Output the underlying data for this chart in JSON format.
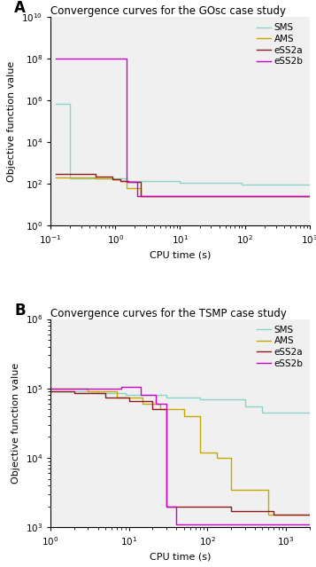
{
  "panel_A": {
    "title": "Convergence curves for the GOsc case study",
    "xlabel": "CPU time (s)",
    "ylabel": "Objective function value",
    "xlim": [
      0.1,
      1000
    ],
    "ylim": [
      1,
      10000000000.0
    ],
    "series": {
      "SMS": {
        "color": "#8dd3c7",
        "x": [
          0.12,
          0.2,
          0.2,
          1.5,
          1.5,
          3.0,
          3.0,
          10.0,
          10.0,
          90.0,
          90.0,
          1000.0
        ],
        "y": [
          700000.0,
          700000.0,
          180,
          180,
          140,
          140,
          130,
          130,
          110,
          110,
          90,
          90
        ]
      },
      "AMS": {
        "color": "#c8a800",
        "x": [
          0.12,
          0.5,
          0.5,
          0.9,
          0.9,
          1.2,
          1.2,
          1.5,
          1.5,
          2.5,
          2.5,
          1000.0
        ],
        "y": [
          190,
          190,
          175,
          175,
          155,
          155,
          130,
          130,
          60,
          60,
          25,
          25
        ]
      },
      "eSS2a": {
        "color": "#8b1a1a",
        "x": [
          0.12,
          0.5,
          0.5,
          0.9,
          0.9,
          1.2,
          1.2,
          1.6,
          1.6,
          2.5,
          2.5,
          1000.0
        ],
        "y": [
          280,
          280,
          210,
          210,
          165,
          165,
          135,
          135,
          120,
          120,
          25,
          25
        ]
      },
      "eSS2b": {
        "color": "#cc00cc",
        "x": [
          0.12,
          1.5,
          1.5,
          2.2,
          2.2,
          1000.0
        ],
        "y": [
          100000000.0,
          100000000.0,
          120,
          120,
          25,
          25
        ]
      }
    }
  },
  "panel_B": {
    "title": "Convergence curves for the TSMP case study",
    "xlabel": "CPU time (s)",
    "ylabel": "Objective function value",
    "xlim": [
      1,
      2000
    ],
    "ylim": [
      1000,
      1000000.0
    ],
    "series": {
      "SMS": {
        "color": "#8dd3c7",
        "x": [
          1,
          4,
          4,
          9,
          9,
          30,
          30,
          80,
          80,
          300,
          300,
          500,
          500,
          2000
        ],
        "y": [
          90000.0,
          90000.0,
          85000.0,
          85000.0,
          80000.0,
          80000.0,
          75000.0,
          75000.0,
          70000.0,
          70000.0,
          55000.0,
          55000.0,
          45000.0,
          45000.0
        ]
      },
      "AMS": {
        "color": "#c8a800",
        "x": [
          1,
          3,
          3,
          7,
          7,
          15,
          15,
          25,
          25,
          50,
          50,
          80,
          80,
          130,
          130,
          200,
          200,
          600,
          600,
          2000
        ],
        "y": [
          100000.0,
          100000.0,
          90000.0,
          90000.0,
          75000.0,
          75000.0,
          60000.0,
          60000.0,
          50000.0,
          50000.0,
          40000.0,
          40000.0,
          12000.0,
          12000.0,
          10000.0,
          10000.0,
          3500,
          3500,
          1500,
          1500
        ]
      },
      "eSS2a": {
        "color": "#8b1a1a",
        "x": [
          1,
          2,
          2,
          5,
          5,
          10,
          10,
          20,
          20,
          30,
          30,
          200,
          200,
          700,
          700,
          2000
        ],
        "y": [
          90000.0,
          90000.0,
          85000.0,
          85000.0,
          75000.0,
          75000.0,
          65000.0,
          65000.0,
          50000.0,
          50000.0,
          2000,
          2000,
          1700,
          1700,
          1500,
          1500
        ]
      },
      "eSS2b": {
        "color": "#cc00cc",
        "x": [
          1,
          8,
          8,
          14,
          14,
          22,
          22,
          30,
          30,
          40,
          40,
          2000
        ],
        "y": [
          100000.0,
          100000.0,
          105000.0,
          105000.0,
          80000.0,
          80000.0,
          60000.0,
          60000.0,
          2000,
          2000,
          1100,
          1100
        ]
      }
    }
  },
  "legend_labels": [
    "SMS",
    "AMS",
    "eSS2a",
    "eSS2b"
  ],
  "background_color": "#f0f0f0"
}
